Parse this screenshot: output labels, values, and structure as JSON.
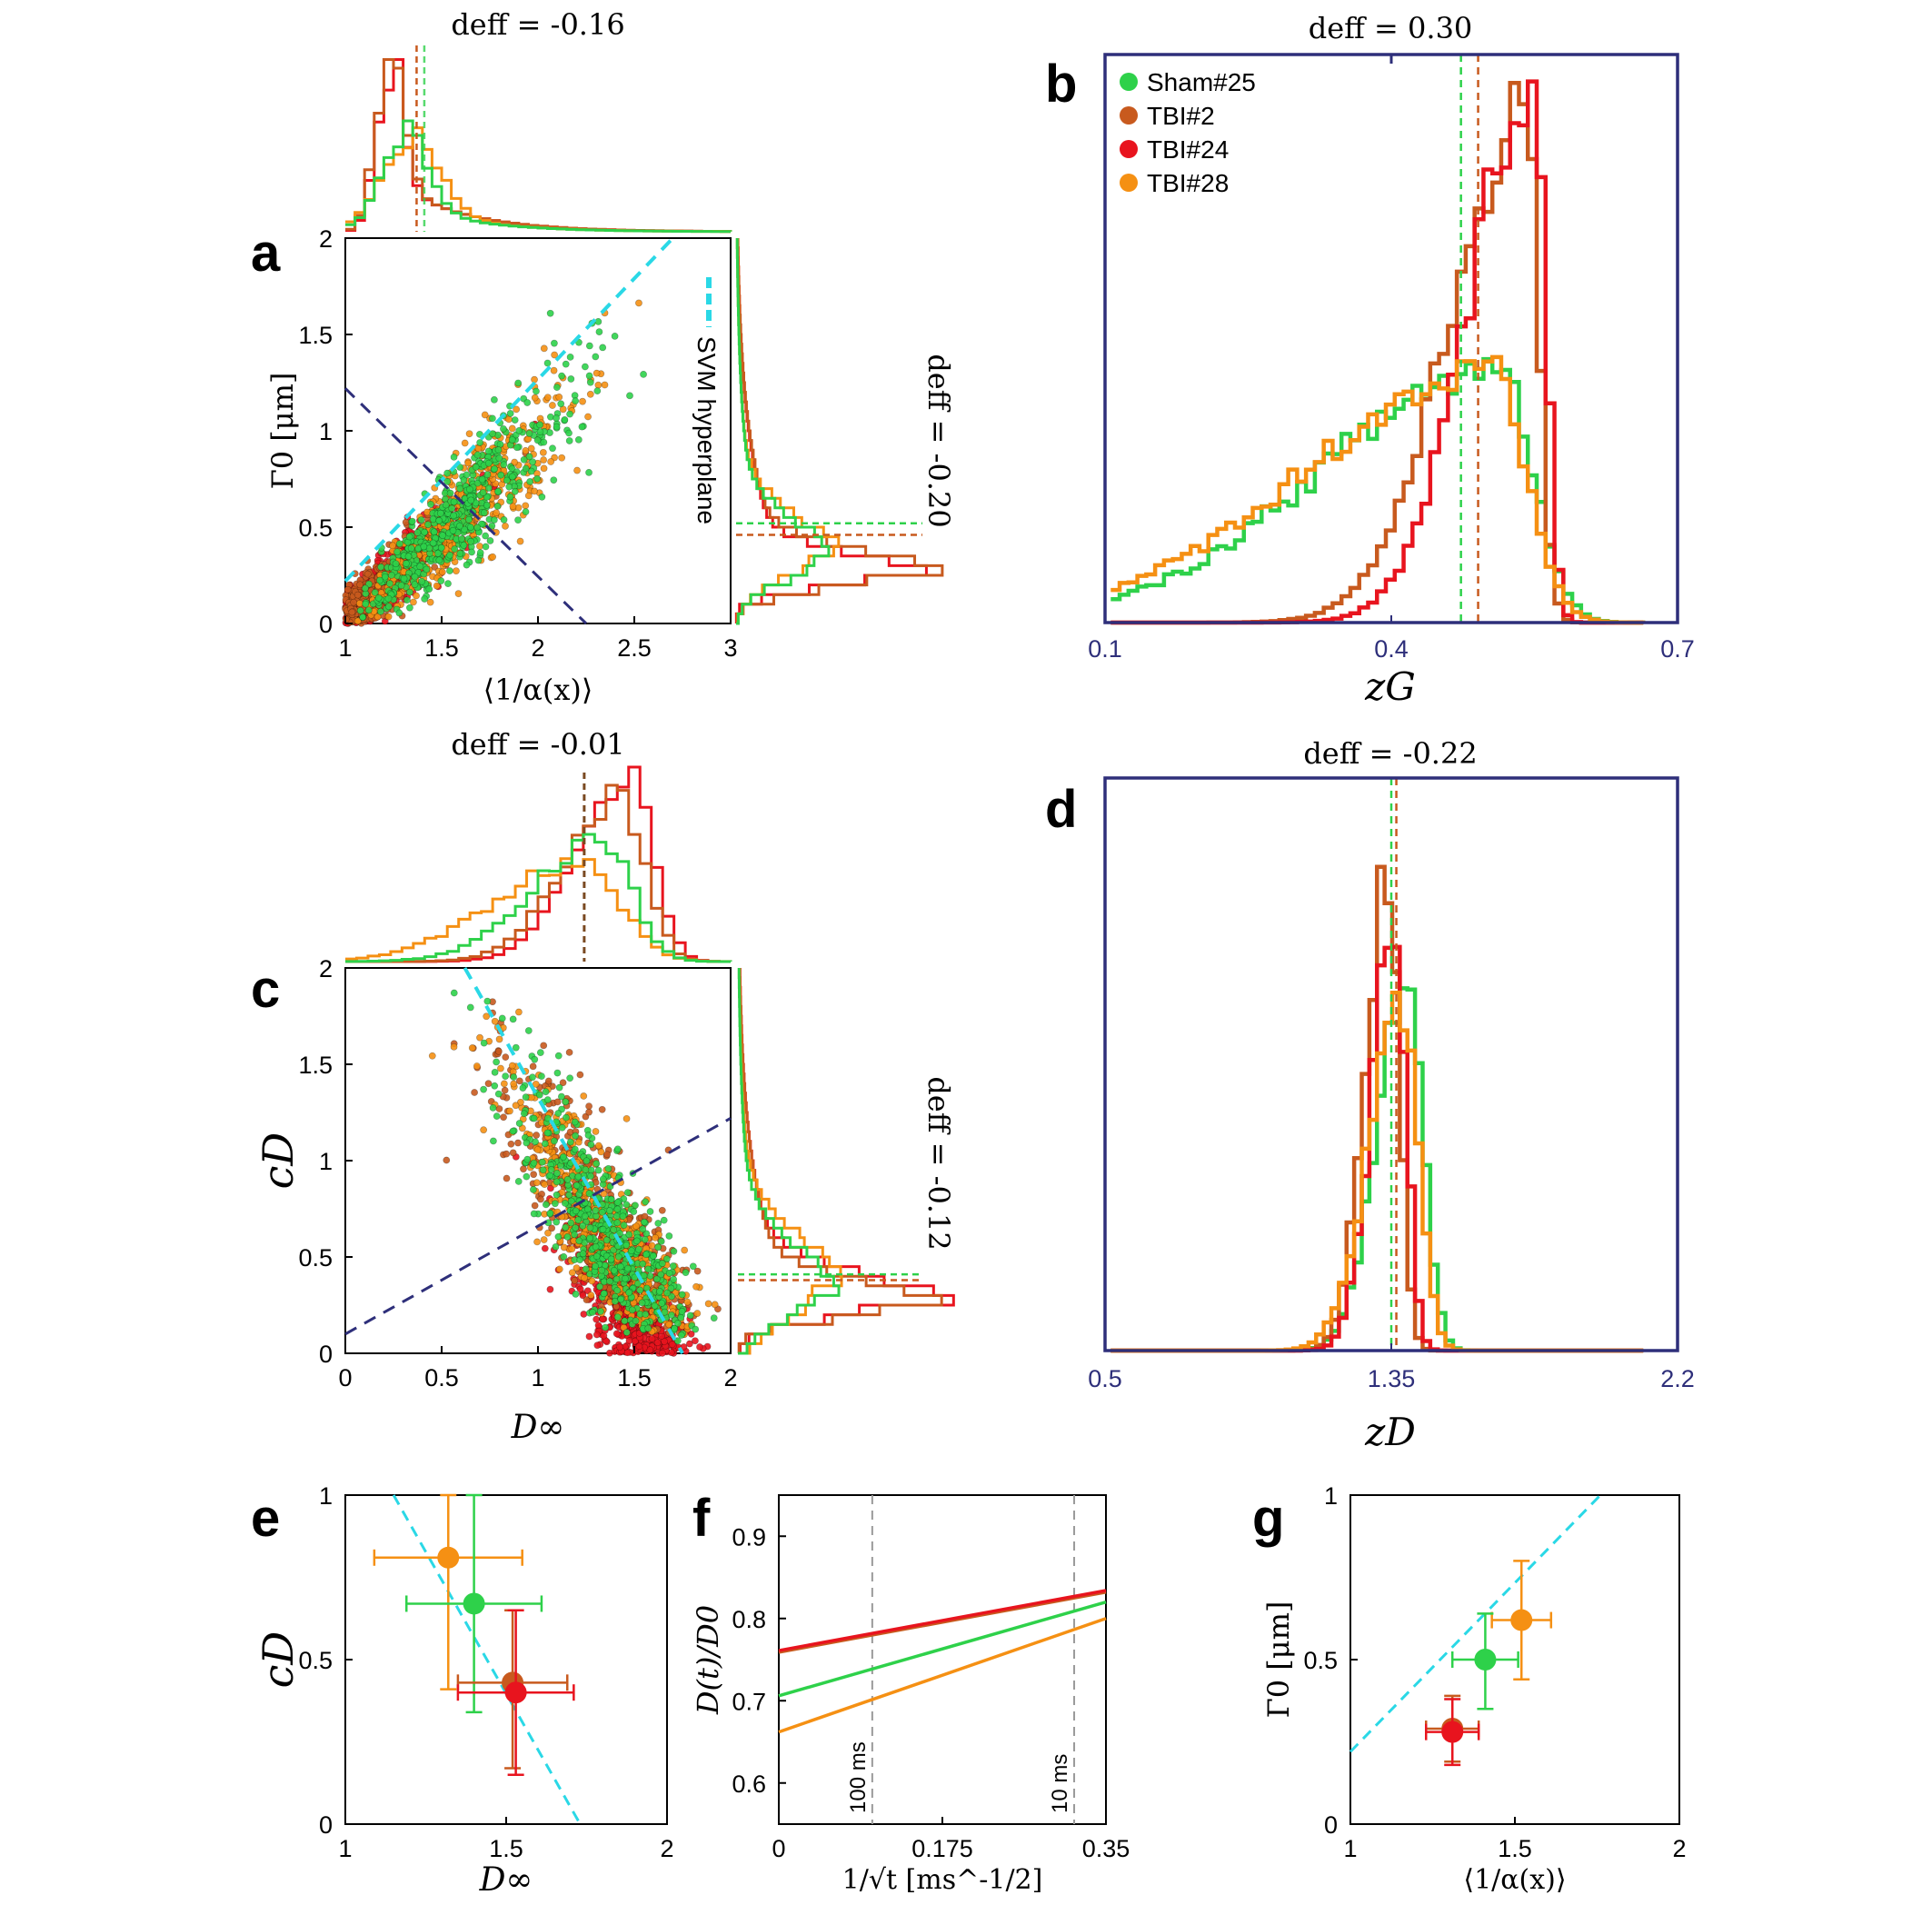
{
  "legend": {
    "entries": [
      {
        "label": "Sham#25",
        "color": "#2ed14a"
      },
      {
        "label": "TBI#2",
        "color": "#c85a1e"
      },
      {
        "label": "TBI#24",
        "color": "#e8141e"
      },
      {
        "label": "TBI#28",
        "color": "#f59013"
      }
    ]
  },
  "colors": {
    "sham": "#2ed14a",
    "tbi2": "#c85a1e",
    "tbi24": "#e8141e",
    "tbi28": "#f59013",
    "svm": "#2ad8e6",
    "navy": "#2e2f7a"
  },
  "chart_data": [
    {
      "panel": "a",
      "type": "scatter",
      "xlabel": "⟨1/α(x)⟩",
      "ylabel": "Γ0 [μm]",
      "xlim": [
        1,
        3
      ],
      "ylim": [
        0,
        2
      ],
      "xticks": [
        "1",
        "1.5",
        "2",
        "2.5",
        "3"
      ],
      "yticks": [
        "0",
        "0.5",
        "1",
        "1.5",
        "2"
      ],
      "top_annotation": "deff = -0.16",
      "right_annotation": "deff = -0.20",
      "svm_label": "SVM hyperplane",
      "svm_line": [
        [
          1,
          0.22
        ],
        [
          2.7,
          2.0
        ]
      ],
      "navy_line": [
        [
          1,
          1.22
        ],
        [
          2.25,
          0.0
        ]
      ],
      "cloud": {
        "center": [
          1.6,
          0.9
        ],
        "major": [
          1.0,
          1.15
        ]
      },
      "top_hist_peak": 1.25,
      "right_hist_peak": 0.25
    },
    {
      "panel": "b",
      "type": "histogram",
      "xlabel": "zG",
      "xlim": [
        0.1,
        0.7
      ],
      "xticks": [
        "0.1",
        "0.4",
        "0.7"
      ],
      "annotation": "deff = 0.30",
      "series": [
        {
          "name": "Sham#25",
          "peak": 0.51,
          "spread": 0.085,
          "height": 0.46
        },
        {
          "name": "TBI#2",
          "peak": 0.535,
          "spread": 0.035,
          "height": 0.92
        },
        {
          "name": "TBI#24",
          "peak": 0.545,
          "spread": 0.03,
          "height": 1.0
        },
        {
          "name": "TBI#28",
          "peak": 0.5,
          "spread": 0.09,
          "height": 0.45
        }
      ],
      "mean_lines": [
        0.473,
        0.491
      ]
    },
    {
      "panel": "c",
      "type": "scatter",
      "xlabel": "D∞",
      "ylabel": "cD",
      "xlim": [
        0,
        2
      ],
      "ylim": [
        0,
        2
      ],
      "xticks": [
        "0",
        "0.5",
        "1",
        "1.5",
        "2"
      ],
      "yticks": [
        "0",
        "0.5",
        "1",
        "1.5",
        "2"
      ],
      "top_annotation": "deff = -0.01",
      "right_annotation": "deff = -0.12",
      "svm_line": [
        [
          0.62,
          2.0
        ],
        [
          1.75,
          0.0
        ]
      ],
      "navy_line": [
        [
          0,
          0.1
        ],
        [
          2.0,
          1.22
        ]
      ],
      "cloud": {
        "center": [
          1.3,
          0.85
        ],
        "major": [
          0.55,
          1.0
        ]
      },
      "top_hist_peak": 1.4,
      "right_hist_peak": 0.25
    },
    {
      "panel": "d",
      "type": "histogram",
      "xlabel": "zD",
      "xlim": [
        0.5,
        2.2
      ],
      "xticks": [
        "0.5",
        "1.35",
        "2.2"
      ],
      "annotation": "deff = -0.22",
      "series": [
        {
          "name": "Sham#25",
          "peak": 1.39,
          "spread": 0.06,
          "height": 0.68
        },
        {
          "name": "TBI#2",
          "peak": 1.33,
          "spread": 0.045,
          "height": 0.86
        },
        {
          "name": "TBI#24",
          "peak": 1.35,
          "spread": 0.045,
          "height": 0.78
        },
        {
          "name": "TBI#28",
          "peak": 1.37,
          "spread": 0.065,
          "height": 0.62
        }
      ],
      "mean_lines": [
        1.35,
        1.365
      ]
    },
    {
      "panel": "e",
      "type": "scatter",
      "xlabel": "D∞",
      "ylabel": "cD",
      "xlim": [
        1,
        2
      ],
      "ylim": [
        0,
        1
      ],
      "xticks": [
        "1",
        "1.5",
        "2"
      ],
      "yticks": [
        "0",
        "0.5",
        "1"
      ],
      "points": [
        {
          "name": "TBI#28",
          "x": 1.32,
          "y": 0.81,
          "xerr": 0.23,
          "yerr_lo": 0.4,
          "yerr_hi": 0.19
        },
        {
          "name": "Sham#25",
          "x": 1.4,
          "y": 0.67,
          "xerr": 0.21,
          "yerr_lo": 0.33,
          "yerr_hi": 0.33
        },
        {
          "name": "TBI#2",
          "x": 1.52,
          "y": 0.43,
          "xerr": 0.17,
          "yerr_lo": 0.26,
          "yerr_hi": 0.22
        },
        {
          "name": "TBI#24",
          "x": 1.53,
          "y": 0.4,
          "xerr": 0.18,
          "yerr_lo": 0.25,
          "yerr_hi": 0.25
        }
      ],
      "svm_line": [
        [
          1.15,
          1.0
        ],
        [
          1.73,
          0.0
        ]
      ]
    },
    {
      "panel": "f",
      "type": "line",
      "xlabel": "1/√t [ms^-1/2]",
      "ylabel": "D(t)/D0",
      "xlim": [
        0,
        0.35
      ],
      "ylim": [
        0.55,
        0.95
      ],
      "xticks": [
        "0",
        "0.175",
        "0.35"
      ],
      "yticks": [
        "0.6",
        "0.7",
        "0.8",
        "0.9"
      ],
      "vlines": [
        {
          "x": 0.1,
          "label": "100 ms"
        },
        {
          "x": 0.316,
          "label": "10 ms"
        }
      ],
      "series": [
        {
          "name": "TBI#2",
          "values": [
            0.759,
            0.832
          ]
        },
        {
          "name": "TBI#24",
          "values": [
            0.761,
            0.834
          ]
        },
        {
          "name": "Sham#25",
          "values": [
            0.706,
            0.82
          ]
        },
        {
          "name": "TBI#28",
          "values": [
            0.662,
            0.8
          ]
        }
      ]
    },
    {
      "panel": "g",
      "type": "scatter",
      "xlabel": "⟨1/α(x)⟩",
      "ylabel": "Γ0 [μm]",
      "xlim": [
        1,
        2
      ],
      "ylim": [
        0,
        1
      ],
      "xticks": [
        "1",
        "1.5",
        "2"
      ],
      "yticks": [
        "0",
        "0.5",
        "1"
      ],
      "points": [
        {
          "name": "TBI#28",
          "x": 1.52,
          "y": 0.62,
          "xerr": 0.09,
          "yerr_lo": 0.18,
          "yerr_hi": 0.18
        },
        {
          "name": "Sham#25",
          "x": 1.41,
          "y": 0.5,
          "xerr": 0.1,
          "yerr_lo": 0.15,
          "yerr_hi": 0.14
        },
        {
          "name": "TBI#2",
          "x": 1.31,
          "y": 0.29,
          "xerr": 0.08,
          "yerr_lo": 0.1,
          "yerr_hi": 0.1
        },
        {
          "name": "TBI#24",
          "x": 1.31,
          "y": 0.28,
          "xerr": 0.08,
          "yerr_lo": 0.1,
          "yerr_hi": 0.1
        }
      ],
      "svm_line": [
        [
          1.0,
          0.22
        ],
        [
          1.76,
          1.0
        ]
      ]
    }
  ]
}
